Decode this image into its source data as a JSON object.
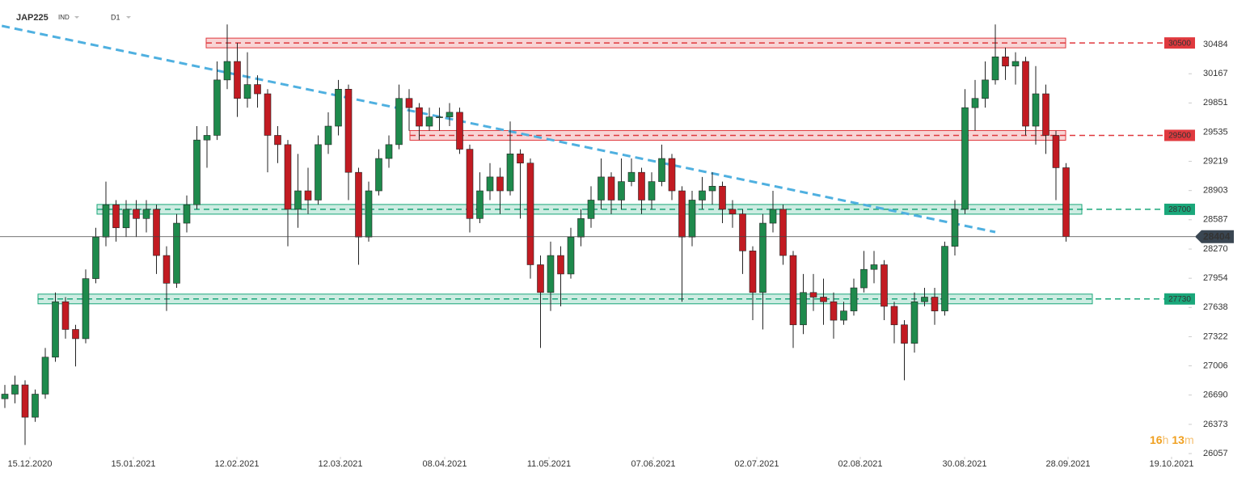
{
  "chart_data": {
    "type": "candlestick",
    "symbol": "JAP225",
    "market": "IND",
    "interval": "D1",
    "up_color": "#1e8a4c",
    "down_color": "#c21b22",
    "open": [
      26650,
      26700,
      26800,
      26450,
      26700,
      27100,
      27700,
      27400,
      27300,
      27950,
      28400,
      28750,
      28500,
      28700,
      28600,
      28700,
      28200,
      27900,
      28550,
      28750,
      29450,
      29500,
      30100,
      30300,
      29900,
      30050,
      29950,
      29500,
      29400,
      28700,
      28900,
      28800,
      29400,
      29600,
      30000,
      29100,
      28400,
      28900,
      29250,
      29400,
      29900,
      29800,
      29600,
      29700,
      29700,
      29750,
      29350,
      28600,
      28900,
      29050,
      28900,
      29300,
      29200,
      28100,
      27800,
      28200,
      28000,
      28400,
      28600,
      28800,
      29050,
      28800,
      29000,
      29100,
      28800,
      29000,
      29250,
      28900,
      28400,
      28800,
      28900,
      28950,
      28700,
      28650,
      28250,
      27800,
      28550,
      28700,
      28200,
      27450,
      27800,
      27750,
      27700,
      27500,
      27600,
      27850,
      28050,
      28100,
      27650,
      27450,
      27250,
      27700,
      27750,
      27600,
      28300,
      28700,
      29800,
      29900,
      30100,
      30350,
      30250,
      30300,
      29600,
      29950,
      29500,
      29150
    ],
    "high": [
      26800,
      26900,
      26850,
      26750,
      27200,
      27800,
      27750,
      27450,
      28050,
      28500,
      29000,
      28800,
      28800,
      28800,
      28800,
      28750,
      28300,
      28650,
      28850,
      29600,
      29600,
      30300,
      30700,
      30500,
      30400,
      30150,
      30000,
      29600,
      29450,
      29300,
      29150,
      29500,
      29750,
      30100,
      30050,
      29150,
      29000,
      29350,
      29500,
      30050,
      30000,
      29850,
      29800,
      29800,
      29850,
      29800,
      29400,
      29100,
      29200,
      29150,
      29650,
      29350,
      29250,
      28200,
      28350,
      28300,
      28500,
      28700,
      28950,
      29250,
      29100,
      29250,
      29250,
      29150,
      29100,
      29400,
      29300,
      28950,
      28900,
      29050,
      29100,
      29000,
      28800,
      28700,
      28300,
      28650,
      28900,
      28750,
      28250,
      28000,
      28000,
      27950,
      27800,
      27700,
      27950,
      28250,
      28250,
      28150,
      27700,
      27500,
      27800,
      27850,
      27850,
      28350,
      28800,
      30000,
      30100,
      30300,
      30700,
      30450,
      30400,
      30350,
      30250,
      30050,
      29550,
      29200
    ],
    "low": [
      26550,
      26600,
      26150,
      26400,
      26650,
      27050,
      27300,
      27000,
      27250,
      27900,
      28300,
      28350,
      28400,
      28400,
      28450,
      28000,
      27600,
      27850,
      28450,
      28700,
      29150,
      29450,
      30000,
      29700,
      29800,
      29800,
      29100,
      29200,
      28300,
      28500,
      28650,
      28750,
      29300,
      29500,
      28800,
      28100,
      28350,
      28850,
      29150,
      29350,
      29550,
      29450,
      29550,
      29550,
      29600,
      29300,
      28450,
      28550,
      28800,
      28650,
      28850,
      28600,
      27950,
      27200,
      27600,
      27650,
      27950,
      28300,
      28500,
      28700,
      28650,
      28700,
      28950,
      28650,
      28700,
      28950,
      28800,
      27700,
      28300,
      28700,
      28750,
      28550,
      28500,
      28000,
      27500,
      27400,
      28450,
      28100,
      27200,
      27350,
      27600,
      27450,
      27300,
      27450,
      27550,
      27800,
      27900,
      27500,
      27250,
      26850,
      27150,
      27650,
      27450,
      27550,
      28200,
      28650,
      29550,
      29800,
      30050,
      30100,
      30050,
      29500,
      29400,
      29300,
      28800,
      28350
    ],
    "close": [
      26700,
      26800,
      26450,
      26700,
      27100,
      27700,
      27400,
      27300,
      27950,
      28400,
      28750,
      28500,
      28700,
      28600,
      28700,
      28200,
      27900,
      28550,
      28750,
      29450,
      29500,
      30100,
      30300,
      29900,
      30050,
      29950,
      29500,
      29400,
      28700,
      28900,
      28800,
      29400,
      29600,
      30000,
      29100,
      28400,
      28900,
      29250,
      29400,
      29900,
      29800,
      29600,
      29700,
      29700,
      29750,
      29350,
      28600,
      28900,
      29050,
      28900,
      29300,
      29200,
      28100,
      27800,
      28200,
      28000,
      28400,
      28600,
      28800,
      29050,
      28800,
      29000,
      29100,
      28800,
      29000,
      29250,
      28900,
      28400,
      28800,
      28900,
      28950,
      28700,
      28650,
      28250,
      27800,
      28550,
      28700,
      28200,
      27450,
      27800,
      27750,
      27700,
      27500,
      27600,
      27850,
      28050,
      28100,
      27650,
      27450,
      27250,
      27700,
      27750,
      27600,
      28300,
      28700,
      29800,
      29900,
      30100,
      30350,
      30250,
      30300,
      29600,
      29950,
      29500,
      29150,
      28404
    ],
    "xlim": [
      -0.48,
      117.12
    ],
    "xticks": [
      {
        "value": 2.48,
        "label": "15.12.2020"
      },
      {
        "value": 12.72,
        "label": "15.01.2021"
      },
      {
        "value": 22.96,
        "label": "12.02.2021"
      },
      {
        "value": 33.2,
        "label": "12.03.2021"
      },
      {
        "value": 43.52,
        "label": "08.04.2021"
      },
      {
        "value": 53.84,
        "label": "11.05.2021"
      },
      {
        "value": 64.16,
        "label": "07.06.2021"
      },
      {
        "value": 74.4,
        "label": "02.07.2021"
      },
      {
        "value": 84.64,
        "label": "02.08.2021"
      },
      {
        "value": 94.96,
        "label": "30.08.2021"
      },
      {
        "value": 105.2,
        "label": "28.09.2021"
      },
      {
        "value": 115.44,
        "label": "19.10.2021"
      }
    ],
    "ylim": [
      26022,
      30965
    ],
    "yticks": [
      30484,
      30167,
      29851,
      29535,
      29219,
      28903,
      28587,
      28270,
      27954,
      27638,
      27322,
      27006,
      26690,
      26373,
      26057
    ],
    "levels": [
      {
        "value": 30500,
        "color": "#e0393e"
      },
      {
        "value": 29500,
        "color": "#e0393e"
      },
      {
        "value": 28700,
        "color": "#1aa77a"
      },
      {
        "value": 27730,
        "color": "#1aa77a"
      }
    ],
    "last_price": 28404,
    "trendline": {
      "x": [
        -0.3,
        98.0
      ],
      "y": [
        30685,
        28454
      ],
      "color": "#4fb0e0"
    },
    "countdown": [
      "16",
      "h",
      "13",
      "m"
    ]
  }
}
